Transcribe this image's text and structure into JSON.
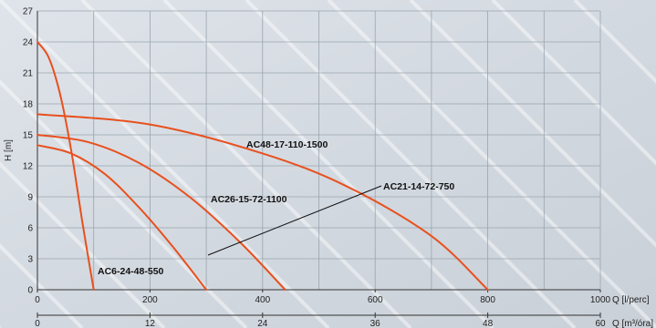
{
  "chart_data": {
    "type": "line",
    "title": "",
    "ylabel": "H [m]",
    "xlabel": "Q [l/perc]",
    "x2label": "Q [m³/óra]",
    "xlim": [
      0,
      1000
    ],
    "ylim": [
      0,
      27
    ],
    "x2lim": [
      0,
      60
    ],
    "xticks": [
      0,
      200,
      400,
      600,
      800,
      1000
    ],
    "yticks": [
      0,
      3,
      6,
      9,
      12,
      15,
      18,
      21,
      24,
      27
    ],
    "x2ticks": [
      0,
      12,
      24,
      36,
      48,
      60
    ],
    "grid": true,
    "colors": {
      "curve": "#e8501e",
      "grid": "#9aa4ae",
      "leader": "#111111"
    },
    "series": [
      {
        "name": "AC6-24-48-550",
        "x": [
          0,
          20,
          40,
          60,
          80,
          100
        ],
        "y": [
          24,
          22.5,
          19.0,
          13.5,
          6.5,
          0
        ]
      },
      {
        "name": "AC21-14-72-750",
        "x": [
          0,
          60,
          120,
          180,
          240,
          300
        ],
        "y": [
          14,
          13.2,
          11.2,
          8.0,
          4.2,
          0
        ]
      },
      {
        "name": "AC26-15-72-1100",
        "x": [
          0,
          90,
          180,
          270,
          360,
          440
        ],
        "y": [
          15,
          14.3,
          12.3,
          9.0,
          4.6,
          0
        ]
      },
      {
        "name": "AC48-17-110-1500",
        "x": [
          0,
          200,
          400,
          550,
          700,
          800
        ],
        "y": [
          17,
          16.0,
          13.2,
          10.0,
          5.2,
          0
        ]
      }
    ]
  }
}
